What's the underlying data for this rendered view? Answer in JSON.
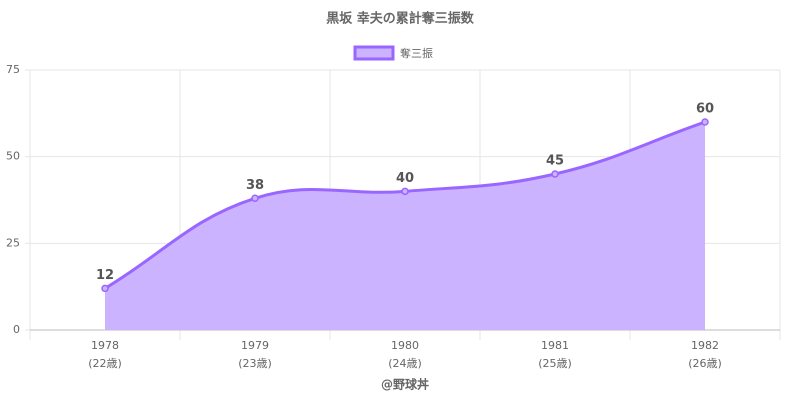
{
  "chart_data": {
    "type": "area",
    "title": "黒坂 幸夫の累計奪三振数",
    "categories": [
      "1978",
      "1979",
      "1980",
      "1981",
      "1982"
    ],
    "category_sublabels": [
      "(22歳)",
      "(23歳)",
      "(24歳)",
      "(25歳)",
      "(26歳)"
    ],
    "xlabel": "@野球丼",
    "series": [
      {
        "name": "奪三振",
        "color": "#9966ff",
        "fill": "#ccb3ff",
        "values": [
          12,
          38,
          40,
          45,
          60
        ]
      }
    ],
    "ylim": [
      0,
      75
    ],
    "yticks": [
      0,
      25,
      50,
      75
    ],
    "grid": true,
    "legend": "top"
  }
}
